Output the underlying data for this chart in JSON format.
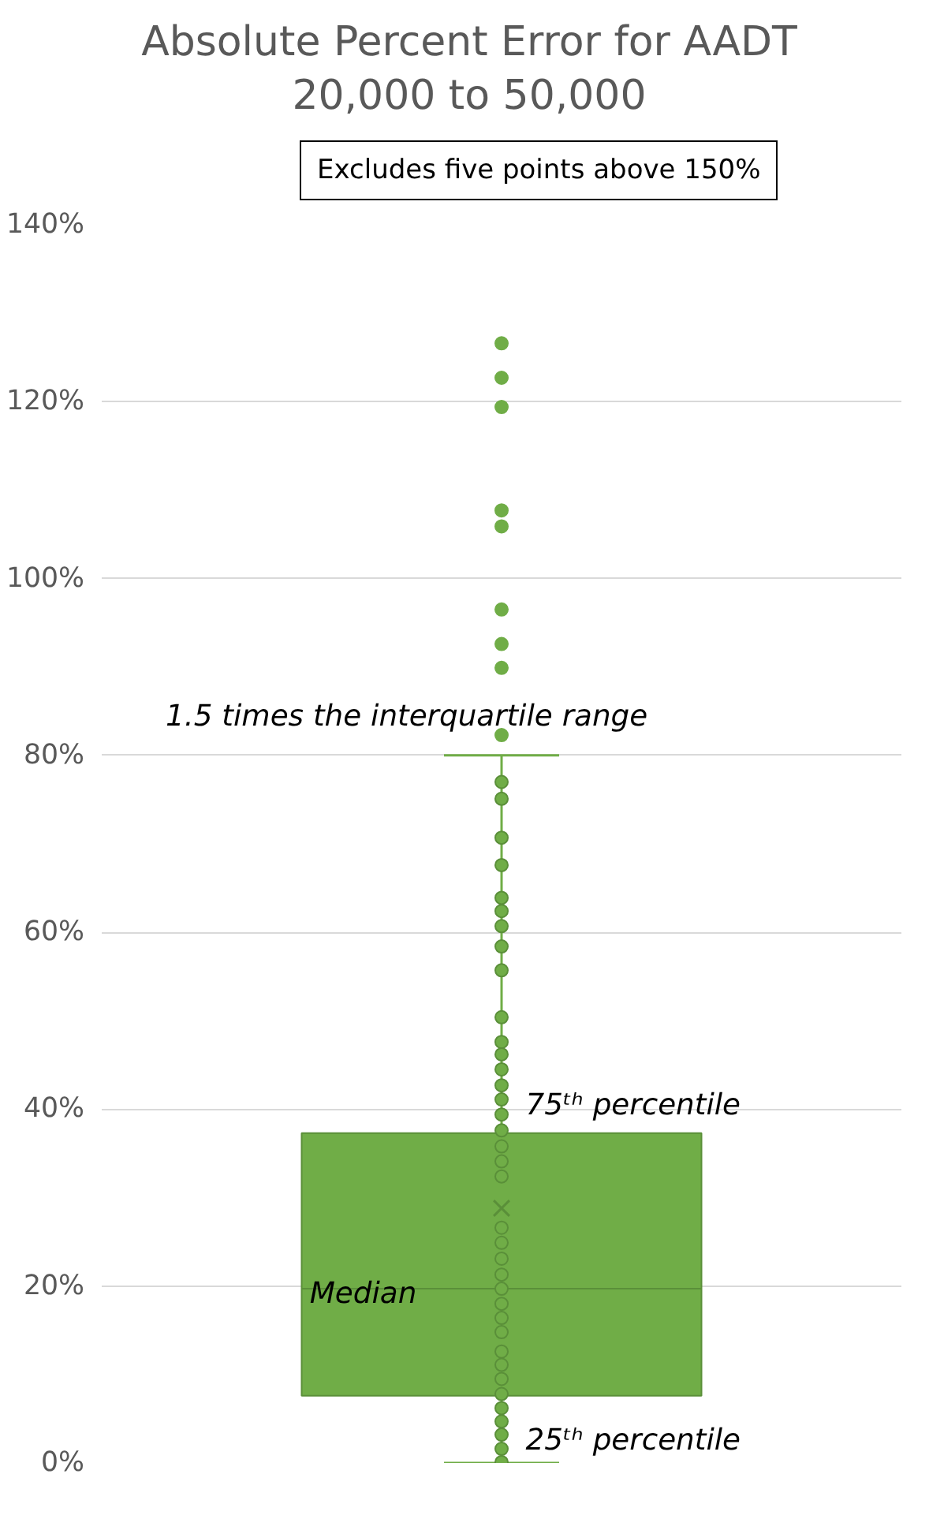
{
  "chart_data": {
    "type": "box",
    "title": "Absolute Percent Error for AADT 20,000 to 50,000",
    "categories": [
      null
    ],
    "boxes": [
      {
        "low": 0,
        "q1": 7.6,
        "median": 19.7,
        "q3": 37.3,
        "high": 80,
        "mean": 28.8,
        "outliers": [
          82.3,
          89.9,
          92.6,
          96.5,
          105.9,
          107.7,
          119.4,
          122.7,
          126.6
        ]
      }
    ],
    "series": [
      {
        "type": "scatter",
        "color": "#70ad47",
        "x": [
          null,
          null,
          null,
          null,
          null,
          null,
          null,
          null,
          null,
          null,
          null,
          null,
          null,
          null,
          null,
          null,
          null,
          null,
          null,
          null,
          null,
          null,
          null,
          null,
          null,
          null,
          null,
          null,
          null,
          null,
          null,
          null,
          null,
          null,
          null,
          null,
          null
        ],
        "values": [
          77.0,
          75.1,
          70.7,
          67.6,
          63.9,
          62.4,
          60.7,
          58.4,
          55.7,
          50.4,
          47.6,
          46.2,
          44.5,
          42.7,
          41.1,
          39.4,
          37.6,
          35.8,
          34.1,
          32.4,
          26.6,
          24.9,
          23.1,
          21.3,
          19.7,
          18.0,
          16.4,
          14.8,
          12.6,
          11.1,
          9.5,
          7.8,
          6.2,
          4.7,
          3.2,
          1.6,
          0.1
        ]
      }
    ],
    "color": "#70ad47",
    "ylim": [
      0,
      140
    ],
    "yticks": [
      {
        "value": 0,
        "label": "0%"
      },
      {
        "value": 20,
        "label": "20%"
      },
      {
        "value": 40,
        "label": "40%"
      },
      {
        "value": 60,
        "label": "60%"
      },
      {
        "value": 80,
        "label": "80%"
      },
      {
        "value": 100,
        "label": "100%"
      },
      {
        "value": 120,
        "label": "120%"
      },
      {
        "value": 140,
        "label": "140%"
      }
    ],
    "grid": "y",
    "tick_labels": "y",
    "marker": "circle",
    "annotations": [
      "Excludes five points above 150%",
      "1.5 times the interquartile range",
      {
        "text": "75ᵗʰ percentile",
        "y": 37.3
      },
      {
        "text": "Median",
        "y": 19.7
      },
      {
        "text": "25ᵗʰ percentile",
        "y": 7.6
      }
    ]
  }
}
